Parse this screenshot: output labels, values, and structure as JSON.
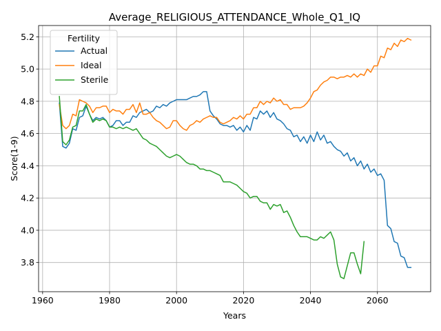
{
  "chart_data": {
    "type": "line",
    "title": "Average_RELIGIOUS_ATTENDANCE_Whole_Q1_IQ",
    "xlabel": "Years",
    "ylabel": "Score(1-9)",
    "xlim": [
      1958.8,
      2075.9
    ],
    "ylim": [
      3.619,
      5.27
    ],
    "xticks": [
      1960,
      1980,
      2000,
      2020,
      2040,
      2060
    ],
    "yticks": [
      3.8,
      4.0,
      4.2,
      4.4,
      4.6,
      4.8,
      5.0,
      5.2
    ],
    "grid": true,
    "legend": {
      "title": "Fertility",
      "placement": "upper-left"
    },
    "series": [
      {
        "name": "Actual",
        "color": "#1f77b4",
        "x": [
          1965,
          1966,
          1967,
          1968,
          1969,
          1970,
          1971,
          1972,
          1973,
          1974,
          1975,
          1976,
          1977,
          1978,
          1979,
          1980,
          1981,
          1982,
          1983,
          1984,
          1985,
          1986,
          1987,
          1988,
          1989,
          1990,
          1991,
          1992,
          1993,
          1994,
          1995,
          1996,
          1997,
          1998,
          1999,
          2000,
          2001,
          2002,
          2003,
          2004,
          2005,
          2006,
          2007,
          2008,
          2009,
          2010,
          2011,
          2012,
          2013,
          2014,
          2015,
          2016,
          2017,
          2018,
          2019,
          2020,
          2021,
          2022,
          2023,
          2024,
          2025,
          2026,
          2027,
          2028,
          2029,
          2030,
          2031,
          2032,
          2033,
          2034,
          2035,
          2036,
          2037,
          2038,
          2039,
          2040,
          2041,
          2042,
          2043,
          2044,
          2045,
          2046,
          2047,
          2048,
          2049,
          2050,
          2051,
          2052,
          2053,
          2054,
          2055,
          2056,
          2057,
          2058,
          2059,
          2060,
          2061,
          2062,
          2063,
          2064,
          2065,
          2066,
          2067,
          2068,
          2069,
          2070
        ],
        "y": [
          4.79,
          4.52,
          4.51,
          4.54,
          4.63,
          4.62,
          4.7,
          4.71,
          4.77,
          4.72,
          4.68,
          4.7,
          4.69,
          4.7,
          4.68,
          4.64,
          4.65,
          4.68,
          4.68,
          4.65,
          4.67,
          4.67,
          4.71,
          4.7,
          4.73,
          4.74,
          4.75,
          4.73,
          4.74,
          4.77,
          4.76,
          4.78,
          4.77,
          4.79,
          4.8,
          4.81,
          4.81,
          4.81,
          4.81,
          4.82,
          4.83,
          4.83,
          4.84,
          4.86,
          4.86,
          4.74,
          4.71,
          4.69,
          4.66,
          4.65,
          4.65,
          4.64,
          4.65,
          4.62,
          4.64,
          4.61,
          4.65,
          4.62,
          4.7,
          4.69,
          4.74,
          4.72,
          4.74,
          4.7,
          4.73,
          4.69,
          4.68,
          4.66,
          4.63,
          4.62,
          4.58,
          4.59,
          4.55,
          4.58,
          4.54,
          4.59,
          4.55,
          4.61,
          4.56,
          4.59,
          4.54,
          4.55,
          4.52,
          4.5,
          4.49,
          4.46,
          4.48,
          4.43,
          4.45,
          4.4,
          4.43,
          4.38,
          4.41,
          4.36,
          4.38,
          4.34,
          4.35,
          4.31,
          4.03,
          4.01,
          3.93,
          3.92,
          3.84,
          3.83,
          3.77,
          3.77
        ]
      },
      {
        "name": "Ideal",
        "color": "#ff7f0e",
        "x": [
          1965,
          1966,
          1967,
          1968,
          1969,
          1970,
          1971,
          1972,
          1973,
          1974,
          1975,
          1976,
          1977,
          1978,
          1979,
          1980,
          1981,
          1982,
          1983,
          1984,
          1985,
          1986,
          1987,
          1988,
          1989,
          1990,
          1991,
          1992,
          1993,
          1994,
          1995,
          1996,
          1997,
          1998,
          1999,
          2000,
          2001,
          2002,
          2003,
          2004,
          2005,
          2006,
          2007,
          2008,
          2009,
          2010,
          2011,
          2012,
          2013,
          2014,
          2015,
          2016,
          2017,
          2018,
          2019,
          2020,
          2021,
          2022,
          2023,
          2024,
          2025,
          2026,
          2027,
          2028,
          2029,
          2030,
          2031,
          2032,
          2033,
          2034,
          2035,
          2036,
          2037,
          2038,
          2039,
          2040,
          2041,
          2042,
          2043,
          2044,
          2045,
          2046,
          2047,
          2048,
          2049,
          2050,
          2051,
          2052,
          2053,
          2054,
          2055,
          2056,
          2057,
          2058,
          2059,
          2060,
          2061,
          2062,
          2063,
          2064,
          2065,
          2066,
          2067,
          2068,
          2069,
          2070
        ],
        "y": [
          4.78,
          4.65,
          4.63,
          4.65,
          4.72,
          4.71,
          4.81,
          4.8,
          4.79,
          4.77,
          4.73,
          4.76,
          4.76,
          4.77,
          4.77,
          4.73,
          4.75,
          4.74,
          4.74,
          4.72,
          4.75,
          4.75,
          4.78,
          4.73,
          4.79,
          4.72,
          4.72,
          4.73,
          4.7,
          4.68,
          4.67,
          4.65,
          4.63,
          4.64,
          4.68,
          4.68,
          4.65,
          4.63,
          4.62,
          4.65,
          4.66,
          4.68,
          4.67,
          4.69,
          4.7,
          4.71,
          4.7,
          4.7,
          4.67,
          4.66,
          4.67,
          4.68,
          4.7,
          4.69,
          4.71,
          4.69,
          4.72,
          4.72,
          4.76,
          4.76,
          4.8,
          4.78,
          4.8,
          4.79,
          4.82,
          4.8,
          4.81,
          4.78,
          4.78,
          4.75,
          4.76,
          4.76,
          4.76,
          4.77,
          4.79,
          4.82,
          4.86,
          4.87,
          4.9,
          4.92,
          4.93,
          4.95,
          4.95,
          4.94,
          4.95,
          4.95,
          4.96,
          4.95,
          4.97,
          4.95,
          4.97,
          4.96,
          5.0,
          4.98,
          5.02,
          5.02,
          5.08,
          5.07,
          5.13,
          5.12,
          5.16,
          5.14,
          5.18,
          5.17,
          5.19,
          5.18
        ]
      },
      {
        "name": "Sterile",
        "color": "#2ca02c",
        "x": [
          1965,
          1966,
          1967,
          1968,
          1969,
          1970,
          1971,
          1972,
          1973,
          1974,
          1975,
          1976,
          1977,
          1978,
          1979,
          1980,
          1981,
          1982,
          1983,
          1984,
          1985,
          1986,
          1987,
          1988,
          1989,
          1990,
          1991,
          1992,
          1993,
          1994,
          1995,
          1996,
          1997,
          1998,
          1999,
          2000,
          2001,
          2002,
          2003,
          2004,
          2005,
          2006,
          2007,
          2008,
          2009,
          2010,
          2011,
          2012,
          2013,
          2014,
          2015,
          2016,
          2017,
          2018,
          2019,
          2020,
          2021,
          2022,
          2023,
          2024,
          2025,
          2026,
          2027,
          2028,
          2029,
          2030,
          2031,
          2032,
          2033,
          2034,
          2035,
          2036,
          2037,
          2038,
          2039,
          2040,
          2041,
          2042,
          2043,
          2044,
          2045,
          2046,
          2047,
          2048,
          2049,
          2050,
          2051,
          2052,
          2053,
          2054,
          2055,
          2056
        ],
        "y": [
          4.83,
          4.55,
          4.53,
          4.56,
          4.64,
          4.65,
          4.74,
          4.74,
          4.78,
          4.72,
          4.67,
          4.69,
          4.68,
          4.69,
          4.68,
          4.64,
          4.64,
          4.63,
          4.64,
          4.63,
          4.64,
          4.63,
          4.62,
          4.63,
          4.6,
          4.57,
          4.56,
          4.54,
          4.53,
          4.52,
          4.5,
          4.48,
          4.46,
          4.45,
          4.46,
          4.47,
          4.46,
          4.44,
          4.42,
          4.41,
          4.41,
          4.4,
          4.38,
          4.38,
          4.37,
          4.37,
          4.36,
          4.35,
          4.34,
          4.3,
          4.3,
          4.3,
          4.29,
          4.28,
          4.26,
          4.24,
          4.23,
          4.2,
          4.21,
          4.21,
          4.18,
          4.17,
          4.17,
          4.13,
          4.16,
          4.15,
          4.16,
          4.11,
          4.12,
          4.08,
          4.03,
          3.99,
          3.96,
          3.96,
          3.96,
          3.95,
          3.94,
          3.94,
          3.96,
          3.95,
          3.97,
          3.99,
          3.94,
          3.79,
          3.71,
          3.7,
          3.78,
          3.86,
          3.86,
          3.79,
          3.73,
          3.93
        ]
      }
    ]
  }
}
